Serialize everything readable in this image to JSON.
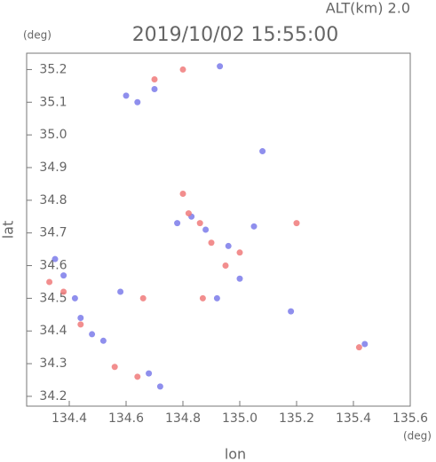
{
  "chart_data": {
    "type": "scatter",
    "title": "2019/10/02 15:55:00",
    "subtitle": "ALT(km) 2.0",
    "y_unit": "(deg)",
    "x_unit": "(deg)",
    "x_label": "lon",
    "y_label": "lat",
    "xlim": [
      134.25,
      135.6
    ],
    "ylim": [
      34.17,
      35.25
    ],
    "xticks": [
      134.4,
      134.6,
      134.8,
      {
        "value": 135.0,
        "label": "135.0"
      },
      135.2,
      135.4,
      135.6
    ],
    "yticks": [
      34.2,
      34.3,
      34.4,
      34.5,
      34.6,
      34.7,
      34.8,
      34.9,
      {
        "value": 35.0,
        "label": "35.0"
      },
      35.1,
      35.2
    ],
    "series": [
      {
        "color": "#7b7bea",
        "x": [
          134.35,
          134.38,
          134.42,
          134.44,
          134.48,
          134.52,
          134.58,
          134.6,
          134.64,
          134.7,
          134.68,
          134.72,
          134.78,
          134.83,
          134.88,
          134.92,
          134.96,
          135.0,
          135.05,
          135.18,
          135.44,
          134.93,
          135.08
        ],
        "y": [
          34.62,
          34.57,
          34.5,
          34.44,
          34.39,
          34.37,
          34.52,
          35.12,
          35.1,
          35.14,
          34.27,
          34.23,
          34.73,
          34.75,
          34.71,
          34.5,
          34.66,
          34.56,
          34.72,
          34.46,
          34.36,
          35.21,
          34.95
        ]
      },
      {
        "color": "#f07a7a",
        "x": [
          134.33,
          134.38,
          134.44,
          134.56,
          134.64,
          134.7,
          134.8,
          134.8,
          134.82,
          134.86,
          134.9,
          134.95,
          135.0,
          134.87,
          135.2,
          135.42,
          134.66
        ],
        "y": [
          34.55,
          34.52,
          34.42,
          34.29,
          34.26,
          35.17,
          35.2,
          34.82,
          34.76,
          34.73,
          34.67,
          34.6,
          34.64,
          34.5,
          34.73,
          34.35,
          34.5
        ]
      }
    ]
  }
}
